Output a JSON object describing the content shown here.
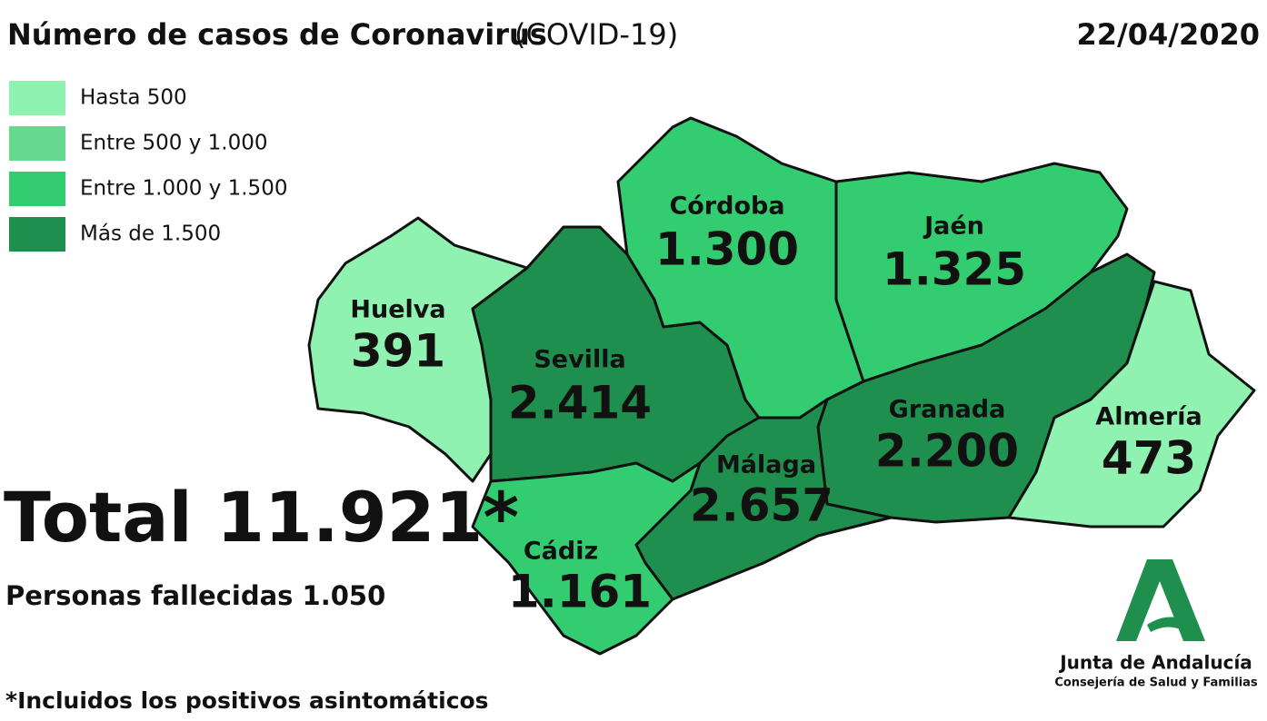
{
  "header": {
    "title": "Número de casos de Coronavirus",
    "subtitle": "(COVID-19)",
    "date": "22/04/2020"
  },
  "legend": {
    "items": [
      "Hasta 500",
      "Entre 500 y 1.000",
      "Entre 1.000 y 1.500",
      "Más de 1.500"
    ]
  },
  "provinces": [
    {
      "name": "Huelva",
      "cases": "391"
    },
    {
      "name": "Sevilla",
      "cases": "2.414"
    },
    {
      "name": "Córdoba",
      "cases": "1.300"
    },
    {
      "name": "Jaén",
      "cases": "1.325"
    },
    {
      "name": "Granada",
      "cases": "2.200"
    },
    {
      "name": "Almería",
      "cases": "473"
    },
    {
      "name": "Málaga",
      "cases": "2.657"
    },
    {
      "name": "Cádiz",
      "cases": "1.161"
    }
  ],
  "total": "Total 11.921*",
  "deaths": "Personas fallecidas 1.050",
  "footnote": "*Incluidos los positivos asintomáticos",
  "logo": {
    "name": "Junta de Andalucía",
    "department": "Consejería de Salud y Familias"
  }
}
